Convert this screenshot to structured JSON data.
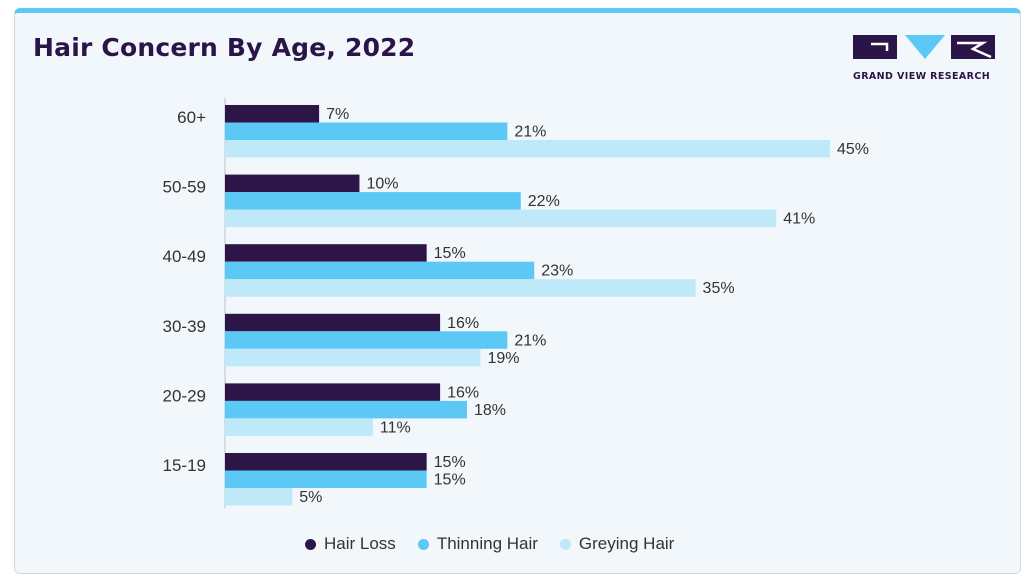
{
  "title": "Hair Concern By Age, 2022",
  "logo": {
    "text": "GRAND VIEW RESEARCH"
  },
  "colors": {
    "hair_loss": "#2d1548",
    "thinning_hair": "#5bc8f5",
    "greying_hair": "#bfe8f8",
    "title": "#2b1548",
    "accent": "#5bc8f5"
  },
  "chart_data": {
    "type": "bar",
    "orientation": "horizontal",
    "title": "Hair Concern By Age, 2022",
    "categories": [
      "60+",
      "50-59",
      "40-49",
      "30-39",
      "20-29",
      "15-19"
    ],
    "series": [
      {
        "name": "Hair Loss",
        "values": [
          7,
          10,
          15,
          16,
          16,
          15
        ]
      },
      {
        "name": "Thinning Hair",
        "values": [
          21,
          22,
          23,
          21,
          18,
          15
        ]
      },
      {
        "name": "Greying Hair",
        "values": [
          45,
          41,
          35,
          19,
          11,
          5
        ]
      }
    ],
    "value_suffix": "%",
    "xlim": [
      0,
      45
    ],
    "grid": false,
    "legend": "bottom"
  }
}
